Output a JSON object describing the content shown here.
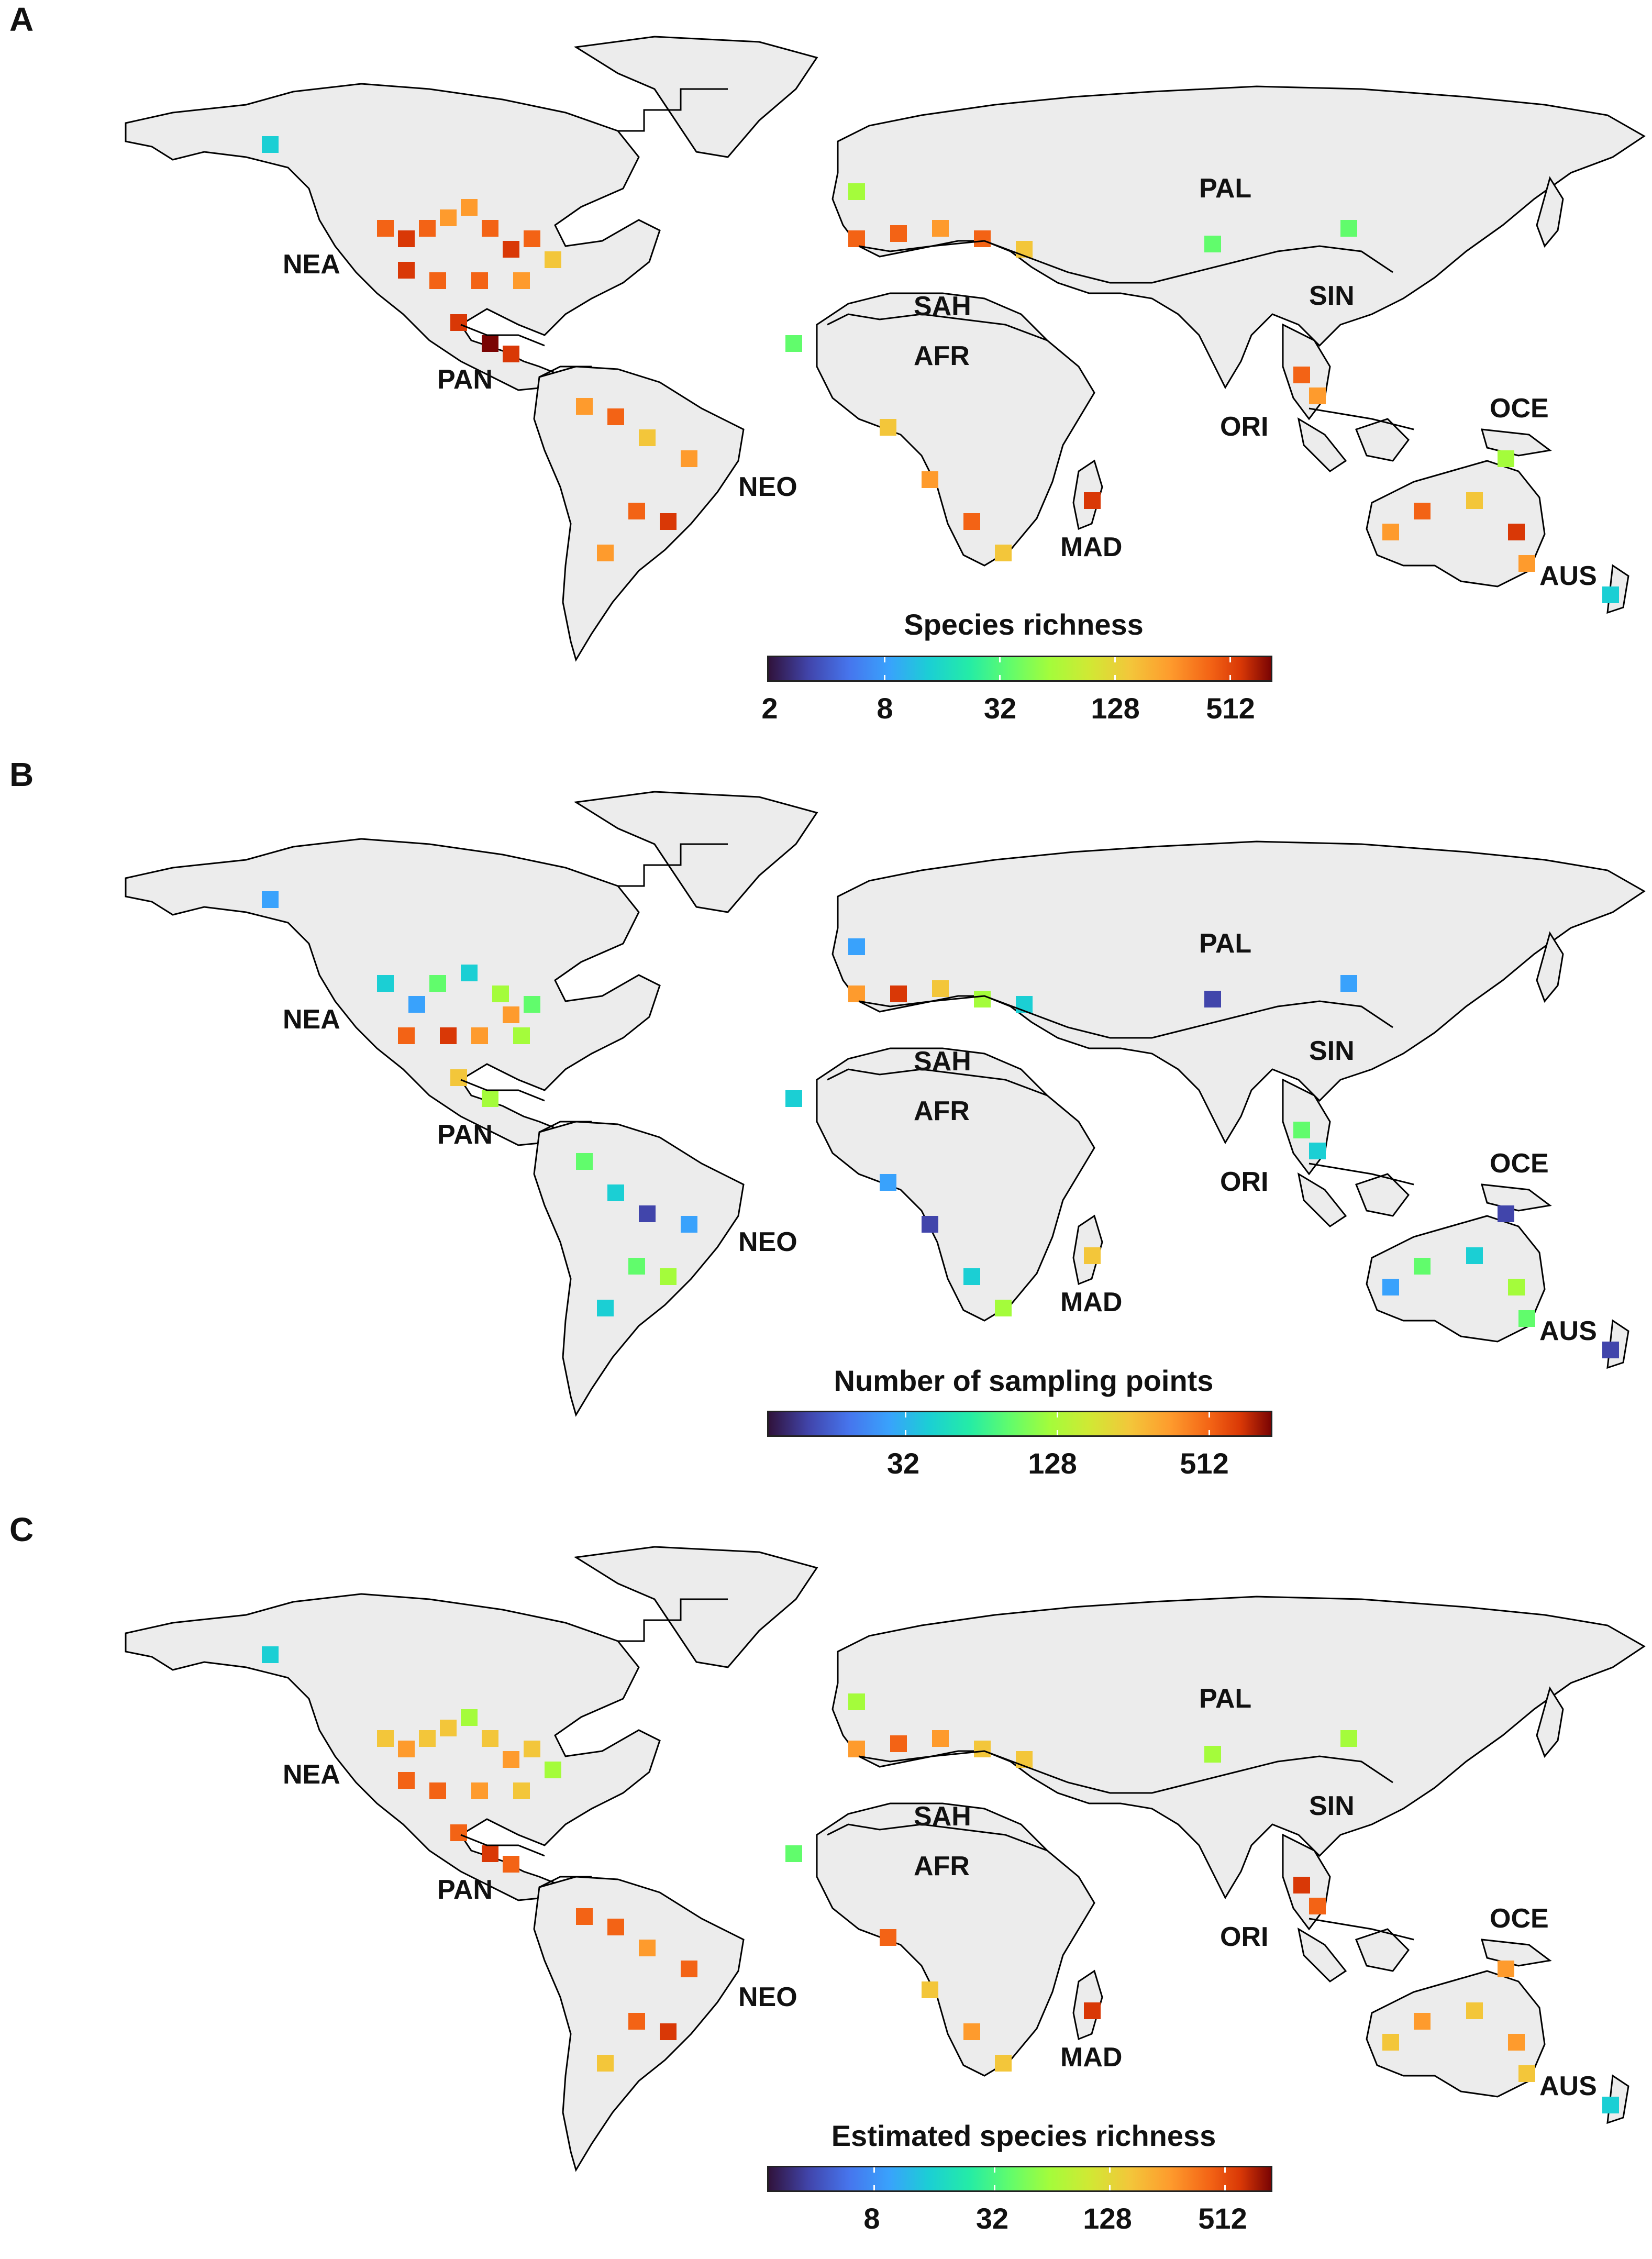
{
  "panels": [
    {
      "letter": "A",
      "legend_title": "Species richness",
      "ticks": [
        "2",
        "8",
        "32",
        "128",
        "512"
      ],
      "regions": [
        "NEA",
        "PAN",
        "NEO",
        "SAH",
        "AFR",
        "MAD",
        "PAL",
        "SIN",
        "ORI",
        "OCE",
        "AUS"
      ]
    },
    {
      "letter": "B",
      "legend_title": "Number of sampling points",
      "ticks": [
        "32",
        "128",
        "512"
      ],
      "regions": [
        "NEA",
        "PAN",
        "NEO",
        "SAH",
        "AFR",
        "MAD",
        "PAL",
        "SIN",
        "ORI",
        "OCE",
        "AUS"
      ]
    },
    {
      "letter": "C",
      "legend_title": "Estimated species richness",
      "ticks": [
        "8",
        "32",
        "128",
        "512"
      ],
      "regions": [
        "NEA",
        "PAN",
        "NEO",
        "SAH",
        "AFR",
        "MAD",
        "PAL",
        "SIN",
        "ORI",
        "OCE",
        "AUS"
      ]
    }
  ],
  "colors": {
    "land": "#ececec",
    "outline": "#000000",
    "colormap": [
      "#30123b",
      "#4145ab",
      "#39a2fc",
      "#1bcfd4",
      "#61fc6c",
      "#a4fc3b",
      "#f3c63a",
      "#fe9b2d",
      "#f36315",
      "#d93806",
      "#7a0403"
    ]
  }
}
